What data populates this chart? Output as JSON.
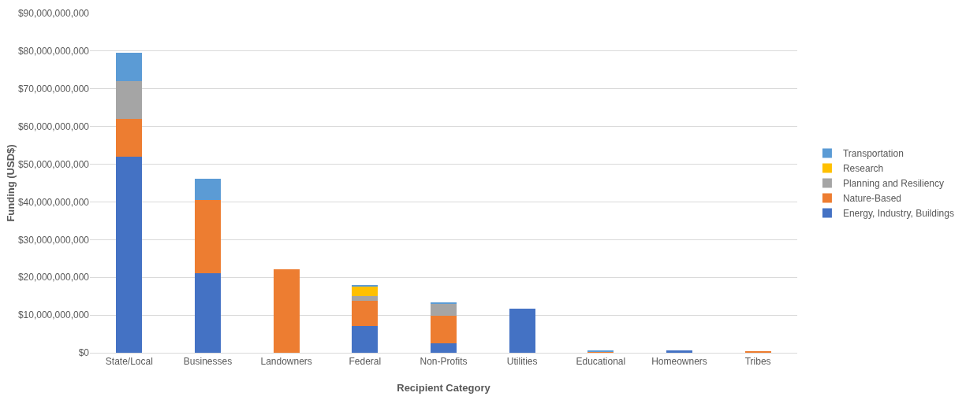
{
  "chart_data": {
    "type": "bar",
    "stacked": true,
    "xlabel": "Recipient Category",
    "ylabel": "Funding (USD$)",
    "categories": [
      "State/Local",
      "Businesses",
      "Landowners",
      "Federal",
      "Non-Profits",
      "Utilities",
      "Educational",
      "Homeowners",
      "Tribes"
    ],
    "series": [
      {
        "name": "Energy, Industry, Buildings",
        "color": "#4472c4",
        "values": [
          52000000000,
          21000000000,
          0,
          7000000000,
          2500000000,
          11600000000,
          0,
          700000000,
          0
        ]
      },
      {
        "name": "Nature-Based",
        "color": "#ed7d31",
        "values": [
          10000000000,
          19500000000,
          22100000000,
          6700000000,
          7400000000,
          0,
          400000000,
          0,
          500000000
        ]
      },
      {
        "name": "Planning and Resiliency",
        "color": "#a5a5a5",
        "values": [
          10000000000,
          0,
          0,
          1300000000,
          3100000000,
          0,
          0,
          0,
          0
        ]
      },
      {
        "name": "Research",
        "color": "#ffc000",
        "values": [
          0,
          0,
          0,
          2600000000,
          0,
          0,
          0,
          0,
          0
        ]
      },
      {
        "name": "Transportation",
        "color": "#5b9bd5",
        "values": [
          7500000000,
          5700000000,
          0,
          300000000,
          200000000,
          0,
          200000000,
          0,
          0
        ]
      }
    ],
    "ylim": [
      0,
      90000000000
    ],
    "yticks": [
      {
        "value": 0,
        "label": "$0"
      },
      {
        "value": 10000000000,
        "label": "$10,000,000,000"
      },
      {
        "value": 20000000000,
        "label": "$20,000,000,000"
      },
      {
        "value": 30000000000,
        "label": "$30,000,000,000"
      },
      {
        "value": 40000000000,
        "label": "$40,000,000,000"
      },
      {
        "value": 50000000000,
        "label": "$50,000,000,000"
      },
      {
        "value": 60000000000,
        "label": "$60,000,000,000"
      },
      {
        "value": 70000000000,
        "label": "$70,000,000,000"
      },
      {
        "value": 80000000000,
        "label": "$80,000,000,000"
      },
      {
        "value": 90000000000,
        "label": "$90,000,000,000"
      }
    ],
    "grid": "y",
    "legend": "right"
  }
}
